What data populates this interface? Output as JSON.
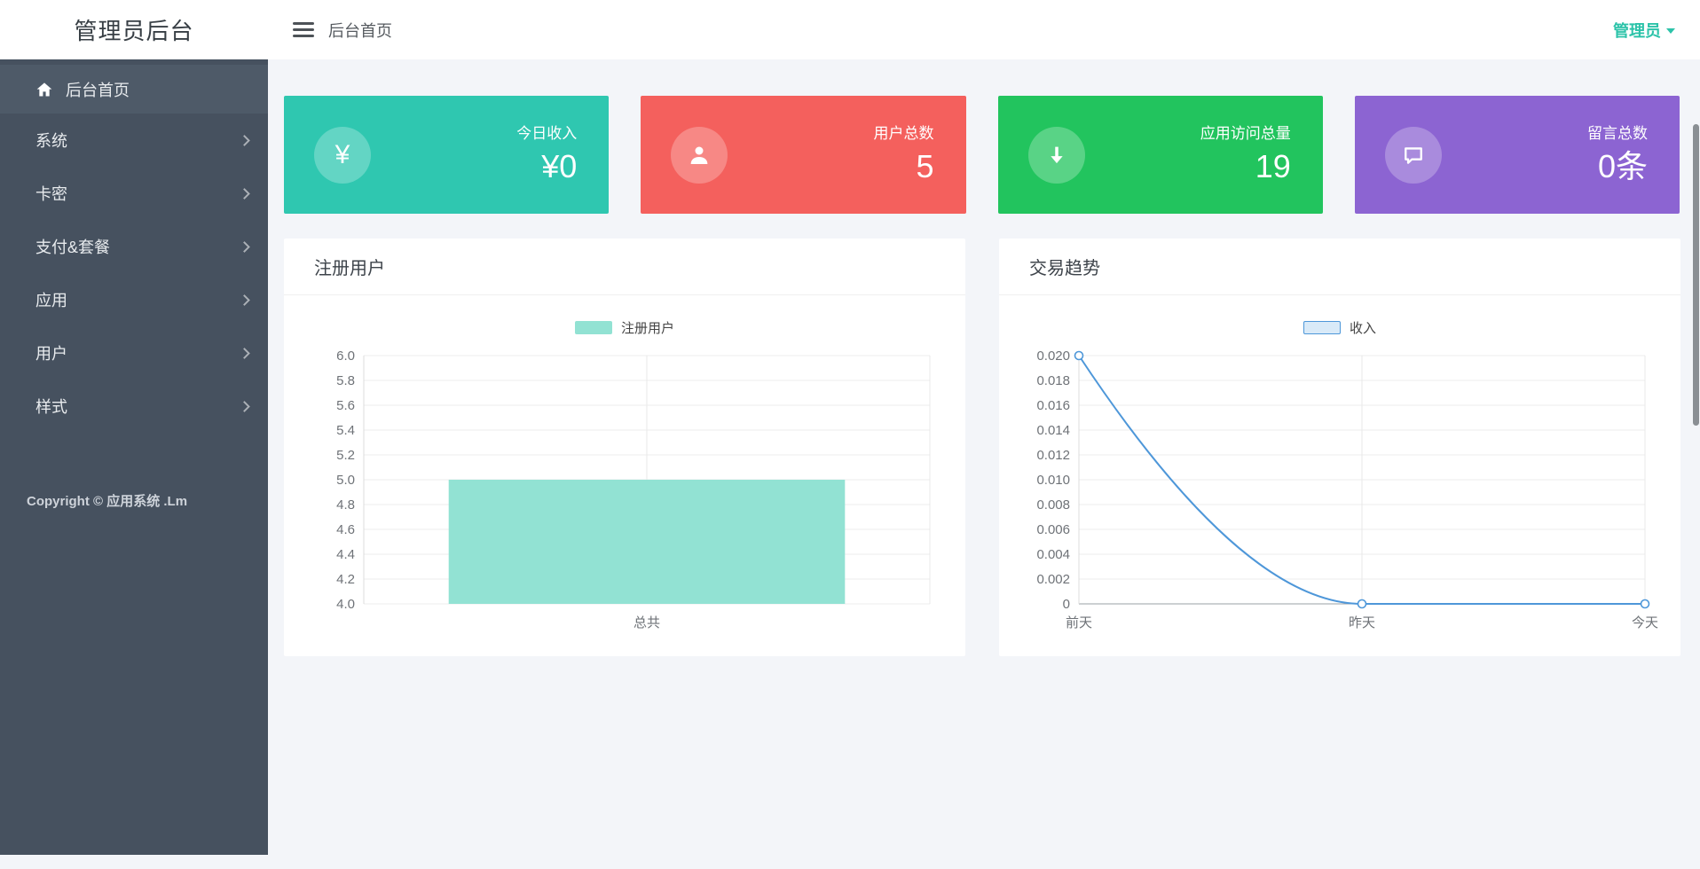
{
  "sidebar": {
    "brand": "管理员后台",
    "active_item": {
      "label": "后台首页"
    },
    "items": [
      {
        "label": "系统"
      },
      {
        "label": "卡密"
      },
      {
        "label": "支付&套餐"
      },
      {
        "label": "应用"
      },
      {
        "label": "用户"
      },
      {
        "label": "样式"
      }
    ],
    "copyright": "Copyright © 应用系统 .Lm"
  },
  "topbar": {
    "breadcrumb": "后台首页",
    "user_menu": "管理员"
  },
  "stat_cards": [
    {
      "label": "今日收入",
      "value": "¥0",
      "icon": "yen-icon",
      "color": "#2fc7b0"
    },
    {
      "label": "用户总数",
      "value": "5",
      "icon": "user-icon",
      "color": "#f4605d"
    },
    {
      "label": "应用访问总量",
      "value": "19",
      "icon": "down-arrow-icon",
      "color": "#22c45e"
    },
    {
      "label": "留言总数",
      "value": "0条",
      "icon": "comment-icon",
      "color": "#8c64d2"
    }
  ],
  "panels": [
    {
      "title": "注册用户"
    },
    {
      "title": "交易趋势"
    }
  ],
  "chart_data": [
    {
      "type": "bar",
      "title": "注册用户",
      "categories": [
        "总共"
      ],
      "series": [
        {
          "name": "注册用户",
          "values": [
            5
          ]
        }
      ],
      "ylim": [
        4.0,
        6.0
      ],
      "ytick_step": 0.2,
      "bar_color": "#92e2d3",
      "legend_position": "top",
      "grid": true
    },
    {
      "type": "line",
      "title": "交易趋势",
      "categories": [
        "前天",
        "昨天",
        "今天"
      ],
      "series": [
        {
          "name": "收入",
          "values": [
            0.02,
            0,
            0
          ]
        }
      ],
      "ylim": [
        0,
        0.02
      ],
      "ytick_step": 0.002,
      "line_color": "#4e97d9",
      "smooth": true,
      "legend_position": "top",
      "grid": true
    }
  ]
}
